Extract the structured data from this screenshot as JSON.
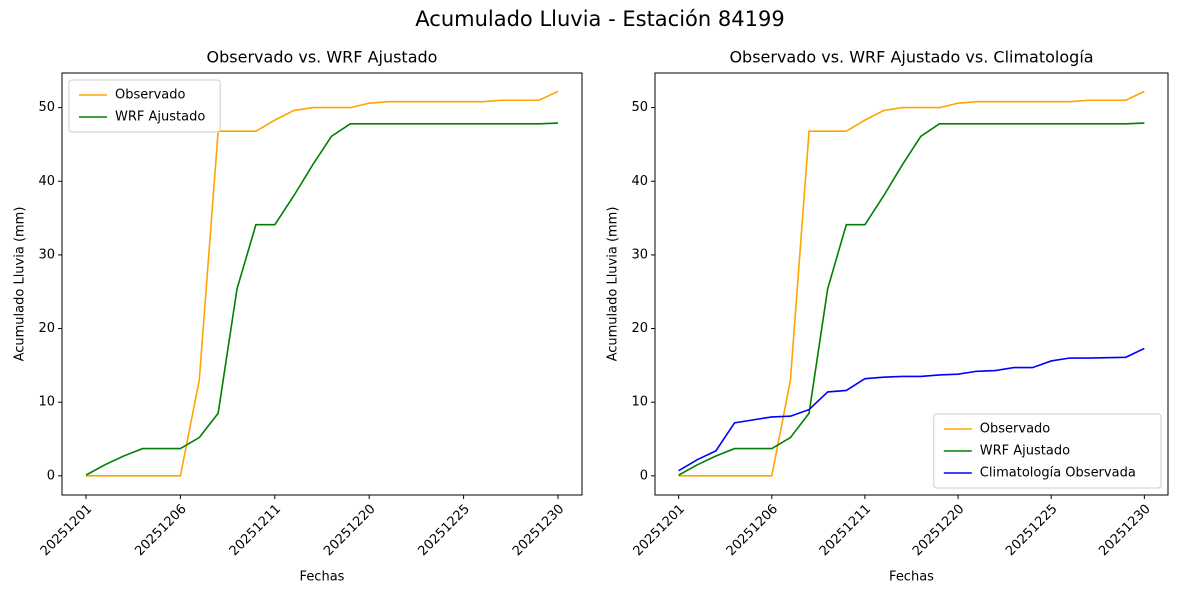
{
  "title": "Acumulado Lluvia - Estación 84199",
  "chart_data": [
    {
      "type": "line",
      "title": "Observado vs. WRF Ajustado",
      "x_label": "Fechas",
      "y_label": "Acumulado Lluvia (mm)",
      "categories": [
        "20251201",
        null,
        null,
        null,
        null,
        "20251206",
        null,
        null,
        null,
        null,
        "20251211",
        null,
        null,
        null,
        null,
        "20251220",
        null,
        null,
        null,
        null,
        "20251225",
        null,
        null,
        null,
        null,
        "20251230"
      ],
      "ylim": [
        -2.6,
        54.7
      ],
      "yticks": [
        0,
        10,
        20,
        30,
        40,
        50
      ],
      "legend": "upper left",
      "grid": false,
      "series": [
        {
          "name": "Observado",
          "color": "#ffa500",
          "values": [
            0,
            0,
            0,
            0,
            0,
            0,
            13,
            46.8,
            46.8,
            46.8,
            48.3,
            49.6,
            50.0,
            50.0,
            50.0,
            50.6,
            50.8,
            50.8,
            50.8,
            50.8,
            50.8,
            50.8,
            51.0,
            51.0,
            51.0,
            52.2
          ]
        },
        {
          "name": "WRF Ajustado",
          "color": "#008000",
          "values": [
            0.1,
            1.5,
            2.7,
            3.7,
            3.7,
            3.7,
            5.2,
            8.5,
            25.4,
            34.1,
            34.1,
            38.0,
            42.2,
            46.1,
            47.8,
            47.8,
            47.8,
            47.8,
            47.8,
            47.8,
            47.8,
            47.8,
            47.8,
            47.8,
            47.8,
            47.9
          ]
        }
      ]
    },
    {
      "type": "line",
      "title": "Observado vs. WRF Ajustado vs. Climatología",
      "x_label": "Fechas",
      "y_label": "Acumulado Lluvia (mm)",
      "categories": [
        "20251201",
        null,
        null,
        null,
        null,
        "20251206",
        null,
        null,
        null,
        null,
        "20251211",
        null,
        null,
        null,
        null,
        "20251220",
        null,
        null,
        null,
        null,
        "20251225",
        null,
        null,
        null,
        null,
        "20251230"
      ],
      "ylim": [
        -2.6,
        54.7
      ],
      "yticks": [
        0,
        10,
        20,
        30,
        40,
        50
      ],
      "legend": "lower right",
      "grid": false,
      "series": [
        {
          "name": "Observado",
          "color": "#ffa500",
          "values": [
            0,
            0,
            0,
            0,
            0,
            0,
            13,
            46.8,
            46.8,
            46.8,
            48.3,
            49.6,
            50.0,
            50.0,
            50.0,
            50.6,
            50.8,
            50.8,
            50.8,
            50.8,
            50.8,
            50.8,
            51.0,
            51.0,
            51.0,
            52.2
          ]
        },
        {
          "name": "WRF Ajustado",
          "color": "#008000",
          "values": [
            0.1,
            1.5,
            2.7,
            3.7,
            3.7,
            3.7,
            5.2,
            8.5,
            25.4,
            34.1,
            34.1,
            38.0,
            42.2,
            46.1,
            47.8,
            47.8,
            47.8,
            47.8,
            47.8,
            47.8,
            47.8,
            47.8,
            47.8,
            47.8,
            47.8,
            47.9
          ]
        },
        {
          "name": "Climatología Observada",
          "color": "#0000ff",
          "values": [
            0.7,
            2.2,
            3.4,
            7.2,
            7.6,
            8.0,
            8.1,
            9.0,
            11.4,
            11.6,
            13.2,
            13.4,
            13.5,
            13.5,
            13.7,
            13.8,
            14.2,
            14.3,
            14.7,
            14.7,
            15.6,
            16.0,
            16.0,
            16.05,
            16.1,
            17.3
          ]
        }
      ]
    }
  ]
}
